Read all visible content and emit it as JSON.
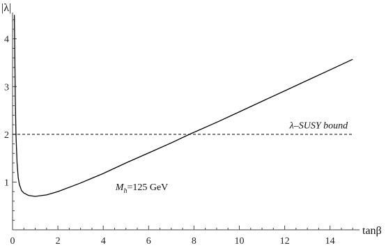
{
  "chart_data": {
    "type": "line",
    "title": "",
    "xlabel": "tanβ",
    "ylabel": "|λ|",
    "xlim": [
      0,
      15.3
    ],
    "ylim": [
      0,
      4.55
    ],
    "grid": false,
    "legend": "none",
    "x_ticks": [
      0,
      2,
      4,
      6,
      8,
      10,
      12,
      14
    ],
    "y_ticks": [
      1,
      2,
      3,
      4
    ],
    "x_tick_labels": [
      "0",
      "2",
      "4",
      "6",
      "8",
      "10",
      "12",
      "14"
    ],
    "y_tick_labels": [
      "1",
      "2",
      "3",
      "4"
    ],
    "series": [
      {
        "style": "solid",
        "color": "#000000",
        "x": [
          0.08,
          0.1,
          0.12,
          0.15,
          0.2,
          0.25,
          0.3,
          0.4,
          0.5,
          0.7,
          1.0,
          1.5,
          2.0,
          3.0,
          4.0,
          5.0,
          6.0,
          7.0,
          7.8,
          9.0,
          10.0,
          11.0,
          12.0,
          13.0,
          14.0,
          15.0
        ],
        "y": [
          4.5,
          3.6,
          2.8,
          2.0,
          1.4,
          1.1,
          0.95,
          0.82,
          0.77,
          0.72,
          0.7,
          0.73,
          0.8,
          0.98,
          1.18,
          1.4,
          1.61,
          1.82,
          2.0,
          2.25,
          2.47,
          2.69,
          2.91,
          3.13,
          3.35,
          3.57
        ]
      },
      {
        "style": "dashed",
        "color": "#000000",
        "x": [
          0,
          15
        ],
        "y": [
          2,
          2
        ]
      }
    ],
    "annotations": [
      {
        "text": "λ–SUSY bound",
        "x": 13.5,
        "y": 2.12
      },
      {
        "text": "M",
        "sub": "h",
        "rest": "=125 GeV",
        "x": 5.7,
        "y": 0.83
      }
    ]
  }
}
